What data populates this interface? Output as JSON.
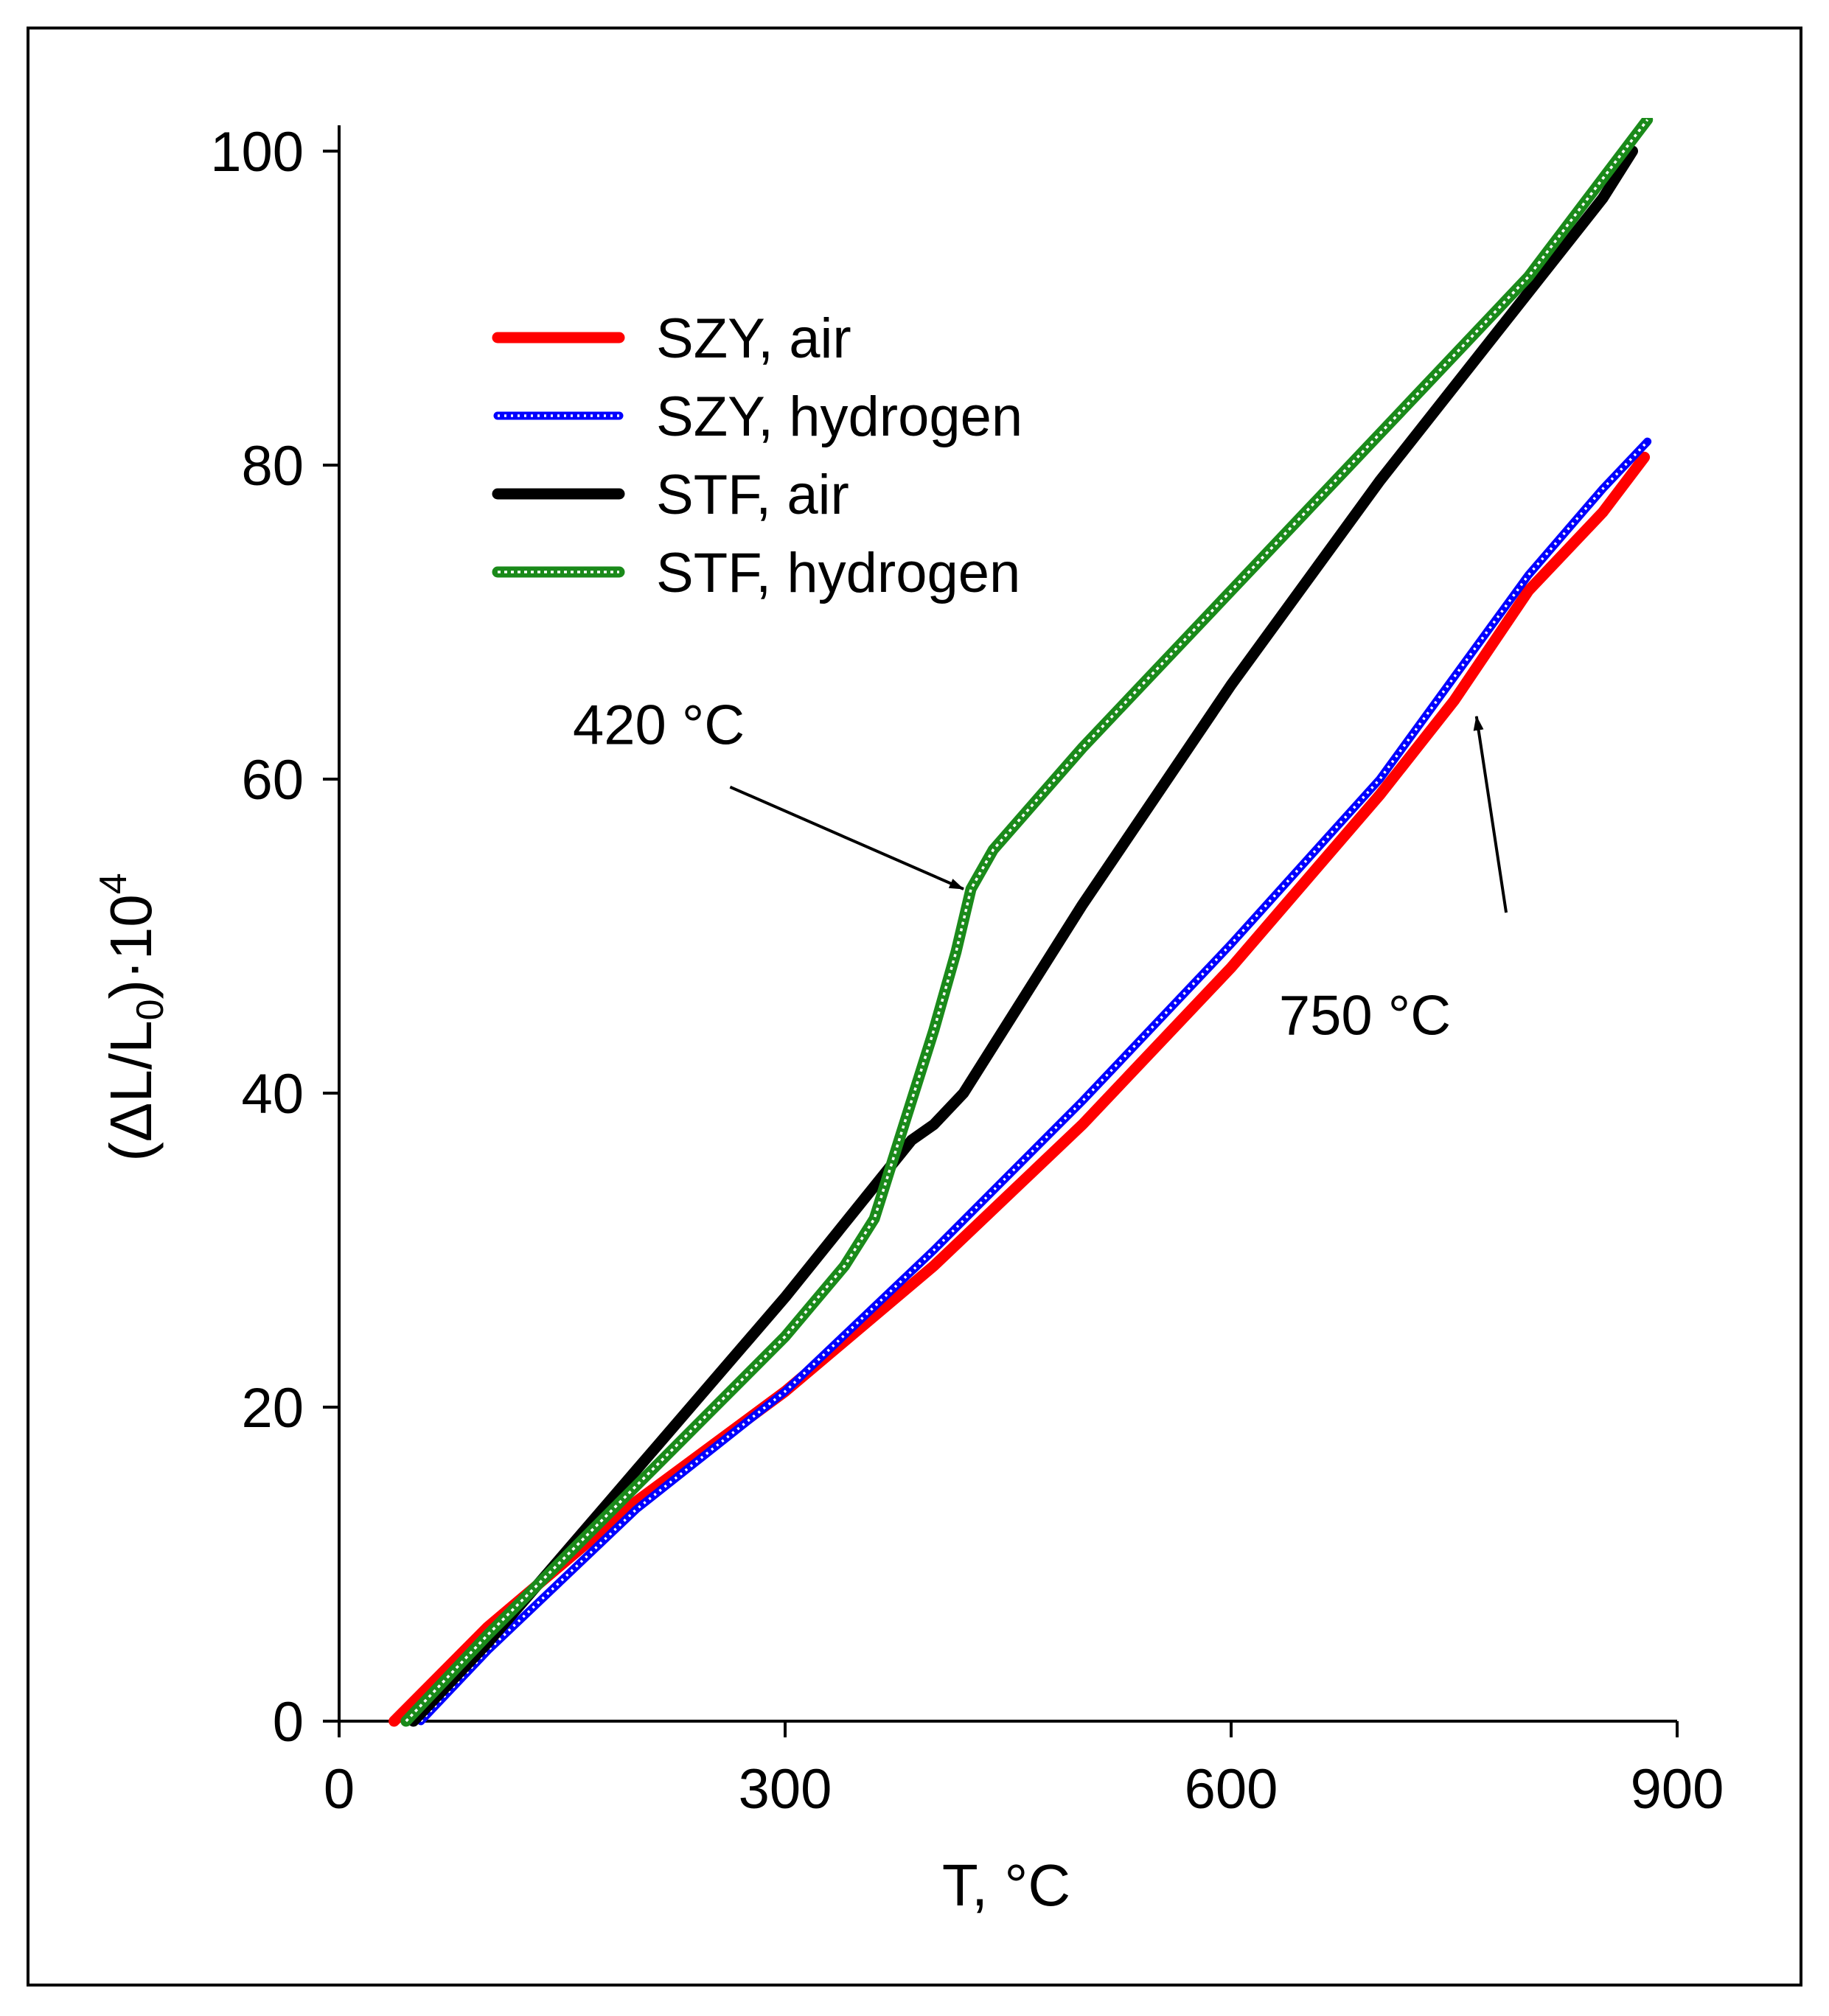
{
  "chart_data": {
    "type": "line",
    "title": "",
    "xlabel": "T, °C",
    "ylabel_main": "(ΔL/L",
    "ylabel_sub": "0",
    "ylabel_tail": ")·10",
    "ylabel_sup": "4",
    "xlim": [
      0,
      900
    ],
    "ylim": [
      0,
      100
    ],
    "xticks": [
      0,
      300,
      600,
      900
    ],
    "yticks": [
      0,
      20,
      40,
      60,
      80,
      100
    ],
    "grid": false,
    "legend_position": "upper-left",
    "series": [
      {
        "name": "SZY, air",
        "color": "#ff0000",
        "style": "solid",
        "x": [
          37,
          100,
          200,
          300,
          400,
          500,
          600,
          700,
          750,
          800,
          850,
          878
        ],
        "y": [
          0,
          6,
          14,
          21,
          29,
          38,
          48,
          59,
          65,
          72,
          77,
          80.5
        ]
      },
      {
        "name": "SZY, hydrogen",
        "color": "#0000ff",
        "style": "dotted",
        "x": [
          55,
          100,
          200,
          300,
          400,
          500,
          600,
          700,
          750,
          800,
          850,
          880
        ],
        "y": [
          0,
          4.5,
          13.5,
          21,
          30,
          39.5,
          49.5,
          60,
          66.5,
          73,
          78.5,
          81.5
        ]
      },
      {
        "name": "STF, air",
        "color": "#000000",
        "style": "solid",
        "x": [
          50,
          100,
          200,
          300,
          385,
          400,
          420,
          500,
          600,
          700,
          800,
          850,
          870
        ],
        "y": [
          0,
          5,
          16,
          27,
          37,
          38,
          40,
          52,
          66,
          79,
          91,
          97,
          100
        ]
      },
      {
        "name": "STF, hydrogen",
        "color": "#1a8a1a",
        "style": "wavy",
        "x": [
          45,
          100,
          200,
          300,
          340,
          360,
          380,
          400,
          415,
          425,
          440,
          500,
          600,
          700,
          800,
          880
        ],
        "y": [
          0,
          5.5,
          15,
          24.5,
          29,
          32,
          38,
          44,
          49,
          53,
          55.5,
          62,
          72,
          82,
          92,
          102
        ]
      }
    ],
    "annotations": [
      {
        "text": "420 °C",
        "points_to_x": 420,
        "points_to_y": 53,
        "text_x": 215,
        "text_y": 63.5,
        "tail_x": 263,
        "tail_y": 59.5
      },
      {
        "text": "750 °C",
        "points_to_x": 765,
        "points_to_y": 64,
        "text_x": 690,
        "text_y": 45,
        "tail_x": 785,
        "tail_y": 51.5
      }
    ]
  }
}
